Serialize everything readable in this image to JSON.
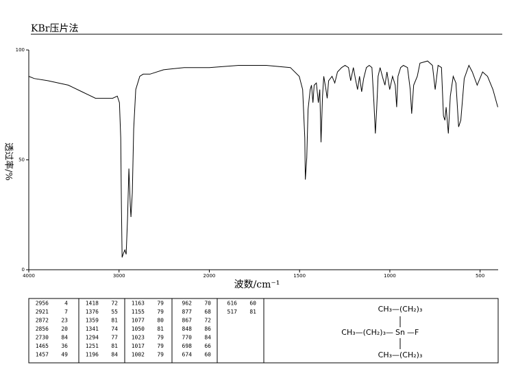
{
  "chart_data": {
    "type": "line",
    "title": "KBr压片法",
    "xlabel": "波数/cm⁻¹",
    "ylabel": "透过率/%",
    "xlim": [
      4000,
      400
    ],
    "x_scale_break": 2000,
    "xticks": [
      4000,
      3000,
      2000,
      1500,
      1000,
      500
    ],
    "ylim": [
      0,
      100
    ],
    "yticks": [
      0,
      50,
      100
    ],
    "series": [
      {
        "color": "#000000",
        "x": [
          4000,
          3940,
          3789,
          3562,
          3411,
          3260,
          3185,
          3072,
          3019,
          2996,
          2981,
          2974,
          2966,
          2951,
          2936,
          2921,
          2906,
          2891,
          2875,
          2868,
          2853,
          2838,
          2815,
          2770,
          2732,
          2657,
          2506,
          2279,
          2000,
          1837,
          1685,
          1551,
          1502,
          1483,
          1471,
          1468,
          1460,
          1453,
          1441,
          1434,
          1426,
          1419,
          1407,
          1396,
          1388,
          1381,
          1373,
          1366,
          1354,
          1347,
          1339,
          1320,
          1305,
          1290,
          1267,
          1248,
          1229,
          1217,
          1202,
          1191,
          1179,
          1168,
          1156,
          1145,
          1130,
          1114,
          1099,
          1088,
          1080,
          1073,
          1065,
          1054,
          1038,
          1027,
          1016,
          1001,
          985,
          970,
          962,
          955,
          940,
          925,
          902,
          887,
          879,
          868,
          848,
          833,
          791,
          764,
          749,
          733,
          714,
          703,
          695,
          688,
          676,
          665,
          649,
          634,
          619,
          607,
          588,
          562,
          543,
          516,
          486,
          459,
          429,
          402
        ],
        "values": [
          88,
          87,
          86,
          84,
          81,
          78,
          78,
          78,
          79,
          76,
          60,
          29,
          5.6,
          7.5,
          9,
          7,
          23,
          46,
          29,
          24,
          35,
          64,
          82,
          88,
          89,
          89,
          91,
          92,
          92,
          93,
          93,
          92,
          88,
          82,
          60,
          41,
          51,
          73,
          82,
          84,
          76,
          84,
          85,
          76,
          82,
          58,
          79,
          88,
          82,
          78,
          86,
          88,
          85,
          90,
          92,
          93,
          92,
          86,
          92,
          87,
          82,
          88,
          81,
          87,
          92,
          93,
          92,
          76,
          62,
          73,
          88,
          92,
          87,
          84,
          90,
          82,
          88,
          84,
          74,
          88,
          92,
          93,
          92,
          82,
          71,
          84,
          88,
          94,
          95,
          93,
          82,
          93,
          92,
          70,
          68,
          74,
          62,
          79,
          88,
          85,
          65,
          68,
          87,
          93,
          90,
          84,
          90,
          88,
          82,
          74
        ]
      }
    ]
  },
  "peak_table": {
    "columns": [
      [
        [
          "2956",
          "4"
        ],
        [
          "2921",
          "7"
        ],
        [
          "2872",
          "23"
        ],
        [
          "2856",
          "20"
        ],
        [
          "2730",
          "84"
        ],
        [
          "1465",
          "36"
        ],
        [
          "1457",
          "49"
        ]
      ],
      [
        [
          "1418",
          "72"
        ],
        [
          "1376",
          "55"
        ],
        [
          "1359",
          "81"
        ],
        [
          "1341",
          "74"
        ],
        [
          "1294",
          "77"
        ],
        [
          "1251",
          "81"
        ],
        [
          "1196",
          "84"
        ]
      ],
      [
        [
          "1163",
          "79"
        ],
        [
          "1155",
          "79"
        ],
        [
          "1077",
          "80"
        ],
        [
          "1050",
          "81"
        ],
        [
          "1023",
          "79"
        ],
        [
          "1017",
          "79"
        ],
        [
          "1002",
          "79"
        ]
      ],
      [
        [
          "962",
          "70"
        ],
        [
          "877",
          "68"
        ],
        [
          "867",
          "72"
        ],
        [
          "848",
          "86"
        ],
        [
          "770",
          "84"
        ],
        [
          "698",
          "66"
        ],
        [
          "674",
          "60"
        ]
      ],
      [
        [
          "616",
          "60"
        ],
        [
          "517",
          "81"
        ]
      ]
    ]
  },
  "structure": {
    "top": "CH₃—(CH₂)₃",
    "left": "CH₃—(CH₂)₃—",
    "center": "Sn",
    "right": "—F",
    "bottom": "CH₃—(CH₂)₃"
  }
}
